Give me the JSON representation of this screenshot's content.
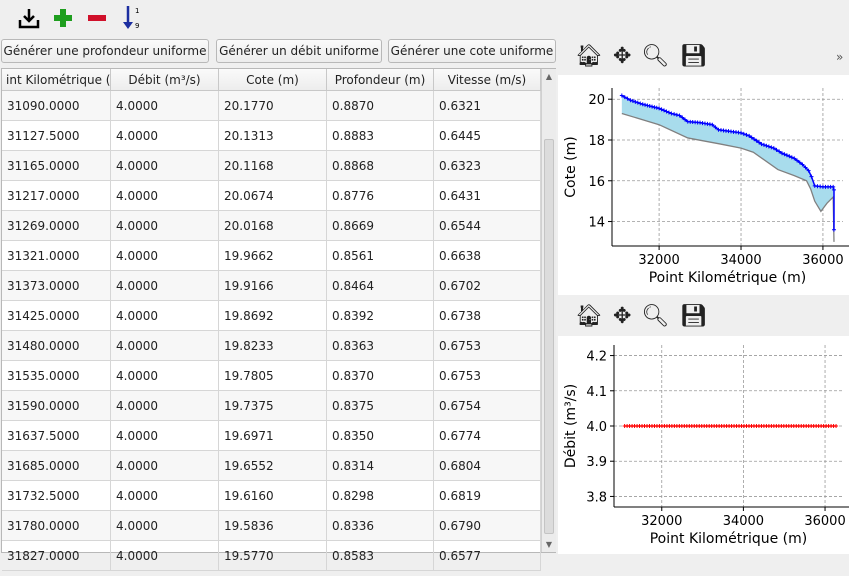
{
  "toolbar": {
    "icons": [
      "import-icon",
      "add-row-icon",
      "remove-row-icon",
      "sort-icon"
    ],
    "sort_label_top": "1",
    "sort_label_bottom": "9"
  },
  "buttons": {
    "uniform_depth": "Générer une profondeur uniforme",
    "uniform_flow": "Générer un débit uniforme",
    "uniform_elevation": "Générer une cote uniforme"
  },
  "table": {
    "columns": [
      "int Kilométrique (",
      "Débit (m³/s)",
      "Cote (m)",
      "Profondeur (m)",
      "Vitesse (m/s)"
    ],
    "rows": [
      [
        "31090.0000",
        "4.0000",
        "20.1770",
        "0.8870",
        "0.6321"
      ],
      [
        "31127.5000",
        "4.0000",
        "20.1313",
        "0.8883",
        "0.6445"
      ],
      [
        "31165.0000",
        "4.0000",
        "20.1168",
        "0.8868",
        "0.6323"
      ],
      [
        "31217.0000",
        "4.0000",
        "20.0674",
        "0.8776",
        "0.6431"
      ],
      [
        "31269.0000",
        "4.0000",
        "20.0168",
        "0.8669",
        "0.6544"
      ],
      [
        "31321.0000",
        "4.0000",
        "19.9662",
        "0.8561",
        "0.6638"
      ],
      [
        "31373.0000",
        "4.0000",
        "19.9166",
        "0.8464",
        "0.6702"
      ],
      [
        "31425.0000",
        "4.0000",
        "19.8692",
        "0.8392",
        "0.6738"
      ],
      [
        "31480.0000",
        "4.0000",
        "19.8233",
        "0.8363",
        "0.6753"
      ],
      [
        "31535.0000",
        "4.0000",
        "19.7805",
        "0.8370",
        "0.6753"
      ],
      [
        "31590.0000",
        "4.0000",
        "19.7375",
        "0.8375",
        "0.6754"
      ],
      [
        "31637.5000",
        "4.0000",
        "19.6971",
        "0.8350",
        "0.6774"
      ],
      [
        "31685.0000",
        "4.0000",
        "19.6552",
        "0.8314",
        "0.6804"
      ],
      [
        "31732.5000",
        "4.0000",
        "19.6160",
        "0.8298",
        "0.6819"
      ],
      [
        "31780.0000",
        "4.0000",
        "19.5836",
        "0.8336",
        "0.6790"
      ],
      [
        "31827.0000",
        "4.0000",
        "19.5770",
        "0.8583",
        "0.6577"
      ]
    ]
  },
  "plot_toolbar": {
    "icons": [
      "home-icon",
      "pan-icon",
      "zoom-icon",
      "save-icon"
    ],
    "overflow": "»"
  },
  "chart_data": [
    {
      "type": "line",
      "xlabel": "Point Kilométrique (m)",
      "ylabel": "Cote (m)",
      "xticks": [
        32000,
        34000,
        36000
      ],
      "yticks": [
        14,
        16,
        18,
        20
      ],
      "xlim": [
        30850,
        36490
      ],
      "ylim": [
        12.8,
        20.55
      ],
      "grid": true,
      "series": [
        {
          "role": "water surface",
          "color": "#0000ff",
          "marker": "+",
          "x": [
            31090,
            31300,
            31600,
            32000,
            32300,
            32500,
            32700,
            33000,
            33300,
            33450,
            34000,
            34200,
            34500,
            34800,
            35000,
            35300,
            35500,
            35650,
            35720,
            35800,
            36000,
            36250,
            36270,
            36270
          ],
          "y": [
            20.18,
            19.95,
            19.75,
            19.55,
            19.3,
            19.2,
            18.9,
            18.85,
            18.75,
            18.5,
            18.35,
            18.2,
            17.8,
            17.6,
            17.35,
            17.1,
            16.8,
            16.5,
            16.2,
            15.75,
            15.7,
            15.7,
            15.55,
            13.6
          ]
        },
        {
          "role": "bed",
          "color": "#808080",
          "x": [
            31090,
            32000,
            32700,
            33500,
            34000,
            34300,
            34900,
            35300,
            35600,
            35700,
            35800,
            35950,
            36100,
            36250,
            36270
          ],
          "y": [
            19.3,
            18.75,
            18.1,
            17.8,
            17.6,
            17.4,
            16.55,
            16.25,
            16.0,
            15.6,
            15.0,
            14.5,
            14.9,
            15.2,
            13.0
          ]
        }
      ],
      "fill_color": "#a8dcec"
    },
    {
      "type": "line",
      "xlabel": "Point Kilométrique (m)",
      "ylabel": "Débit (m³/s)",
      "xticks": [
        32000,
        34000,
        36000
      ],
      "yticks": [
        3.8,
        3.9,
        4.0,
        4.1,
        4.2
      ],
      "xlim": [
        30830,
        36440
      ],
      "ylim": [
        3.77,
        4.23
      ],
      "grid": true,
      "series": [
        {
          "color": "#ff0000",
          "marker": "+",
          "x": [
            31090,
            36270
          ],
          "y": [
            4.0,
            4.0
          ]
        }
      ]
    }
  ]
}
